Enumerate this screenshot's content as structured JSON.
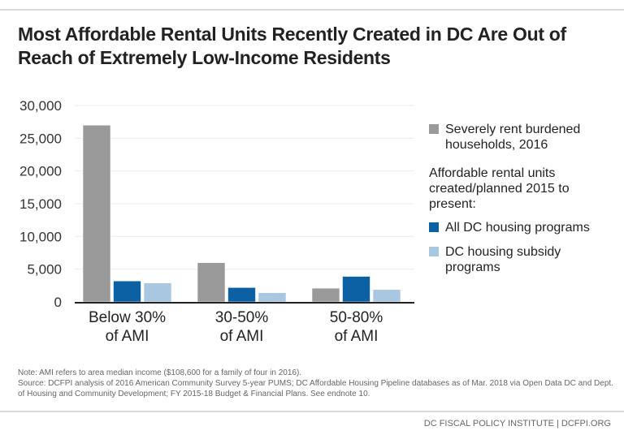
{
  "title": "Most Affordable Rental Units Recently Created in DC Are Out of Reach of Extremely Low-Income Residents",
  "chart_data": {
    "type": "bar",
    "title": "Most Affordable Rental Units Recently Created in DC Are Out of Reach of Extremely Low-Income Residents",
    "categories": [
      [
        "Below 30%",
        "of AMI"
      ],
      [
        "30-50%",
        "of AMI"
      ],
      [
        "50-80%",
        "of AMI"
      ]
    ],
    "series": [
      {
        "name": "Severely rent burdened households, 2016",
        "color": "#9a9a9a",
        "values": [
          27000,
          6000,
          2100
        ]
      },
      {
        "name": "All DC housing programs",
        "color": "#0c61a4",
        "values": [
          3200,
          2200,
          3900
        ]
      },
      {
        "name": "DC housing subsidy programs",
        "color": "#a9c7e0",
        "values": [
          2900,
          1400,
          1900
        ]
      }
    ],
    "ylim": [
      0,
      30000
    ],
    "yticks": [
      "0",
      "5,000",
      "10,000",
      "15,000",
      "20,000",
      "25,000",
      "30,000"
    ],
    "grid": true,
    "legend_position": "right",
    "legend_heading": "Affordable rental units created/planned 2015 to present:"
  },
  "legend": {
    "item0": [
      "Severely rent burdened",
      "households, 2016"
    ],
    "heading": [
      "Affordable rental units",
      "created/planned 2015 to",
      "present:"
    ],
    "item1": [
      "All DC housing programs"
    ],
    "item2": [
      "DC housing subsidy",
      "programs"
    ]
  },
  "notes": {
    "note": "Note: AMI refers to area median income ($108,600 for a family of four in 2016).",
    "source": "Source: DCFPI analysis of 2016 American Community Survey 5-year PUMS; DC Affordable Housing Pipeline databases as of Mar. 2018 via Open Data DC and Dept. of Housing and Community Development; FY 2015-18 Budget & Financial Plans. See endnote 10."
  },
  "footer": "DC FISCAL POLICY INSTITUTE | DCFPI.ORG"
}
